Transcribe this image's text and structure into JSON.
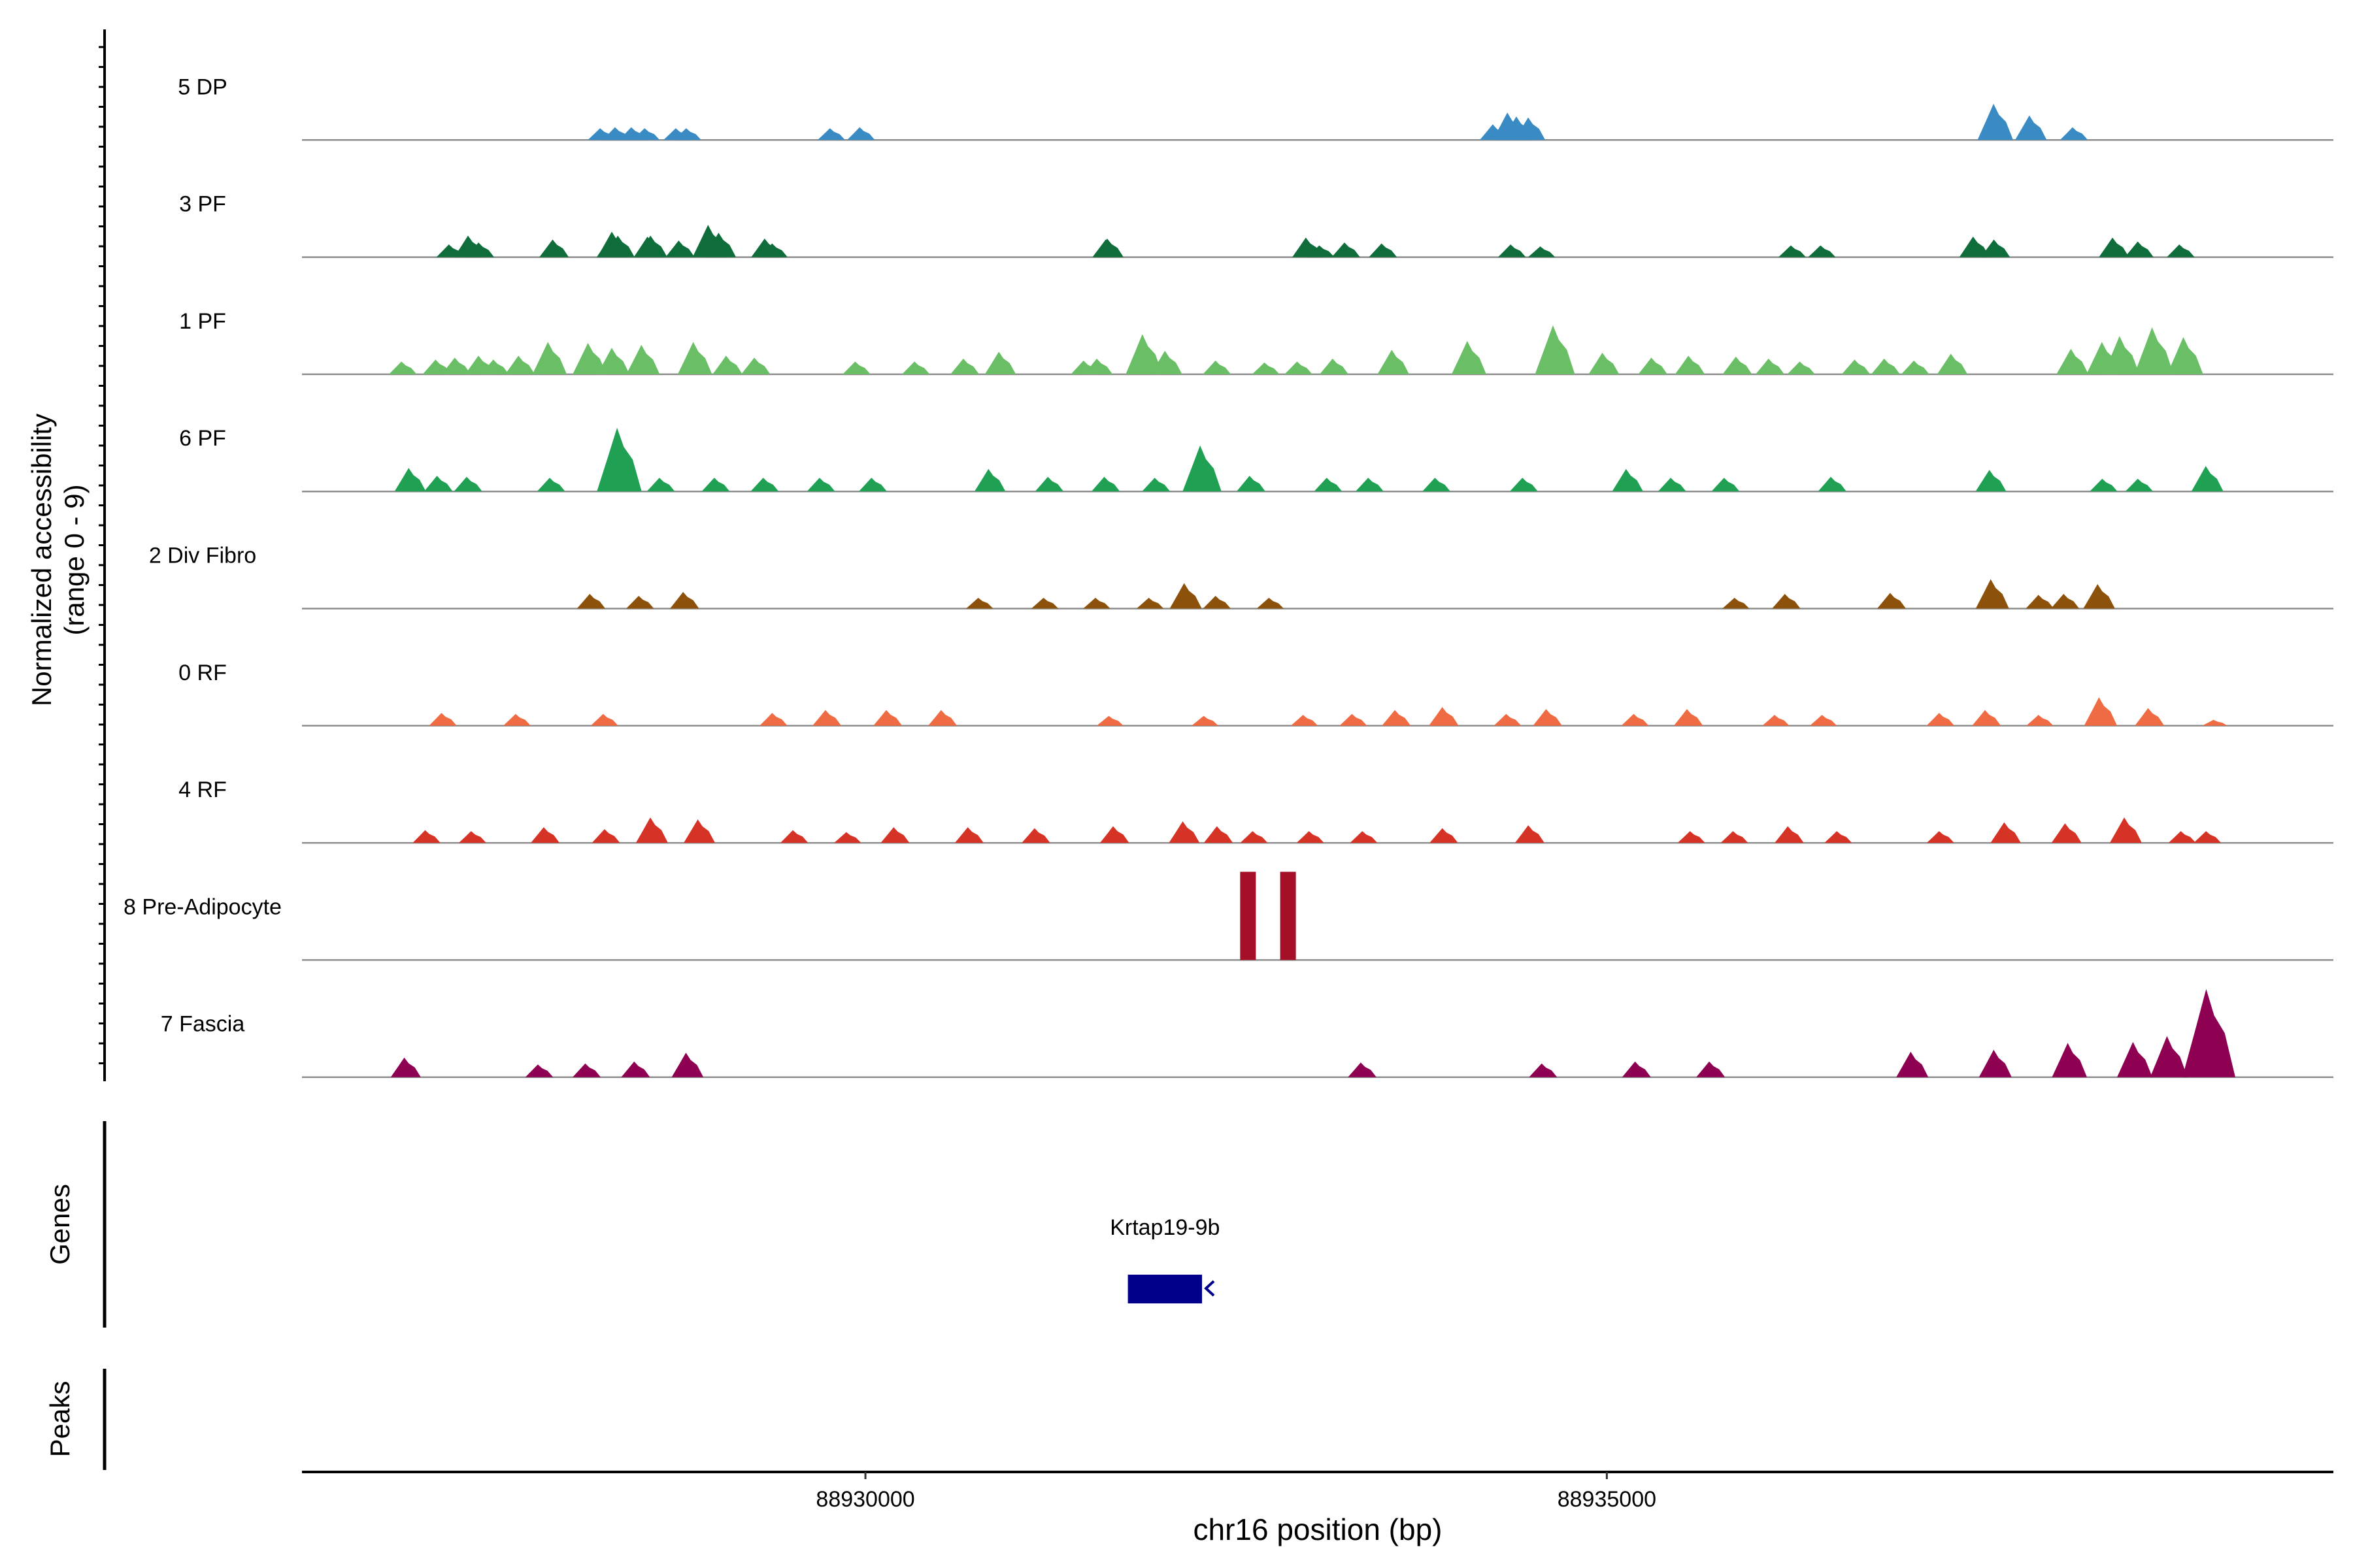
{
  "chart_data": {
    "type": "area",
    "title": "",
    "region": {
      "chromosome": "chr16",
      "start": 88926200,
      "end": 88939900
    },
    "xlabel": "chr16 position (bp)",
    "x_ticks": [
      88930000,
      88935000
    ],
    "x_tick_labels": [
      "88930000",
      "88935000"
    ],
    "ylabel": [
      "Normalized accessibility",
      "(range 0 - 9)"
    ],
    "ylim": [
      0,
      9
    ],
    "panel_labels": {
      "genes": "Genes",
      "peaks": "Peaks"
    },
    "series": [
      {
        "name": "5 DP",
        "color": "#3a8bc4",
        "points": [
          [
            88928220,
            1.2
          ],
          [
            88928320,
            1.3
          ],
          [
            88928430,
            1.3
          ],
          [
            88928520,
            1.2
          ],
          [
            88928730,
            1.2
          ],
          [
            88928800,
            1.2
          ],
          [
            88929770,
            1.2
          ],
          [
            88929970,
            1.3
          ],
          [
            88934240,
            1.6
          ],
          [
            88934340,
            2.8
          ],
          [
            88934400,
            2.4
          ],
          [
            88934480,
            2.3
          ],
          [
            88937620,
            3.7
          ],
          [
            88937860,
            2.5
          ],
          [
            88938150,
            1.3
          ]
        ]
      },
      {
        "name": "3 PF",
        "color": "#0e6d3a",
        "points": [
          [
            88927200,
            1.3
          ],
          [
            88927330,
            2.2
          ],
          [
            88927400,
            1.5
          ],
          [
            88927900,
            1.8
          ],
          [
            88928290,
            2.1
          ],
          [
            88928300,
            2.6
          ],
          [
            88928340,
            2.2
          ],
          [
            88928540,
            2.1
          ],
          [
            88928560,
            2.2
          ],
          [
            88928750,
            1.7
          ],
          [
            88928950,
            3.3
          ],
          [
            88929020,
            2.5
          ],
          [
            88929330,
            1.9
          ],
          [
            88929380,
            1.4
          ],
          [
            88931640,
            1.9
          ],
          [
            88931630,
            1.8
          ],
          [
            88932980,
            2.0
          ],
          [
            88933070,
            1.2
          ],
          [
            88933240,
            1.5
          ],
          [
            88933490,
            1.4
          ],
          [
            88934360,
            1.3
          ],
          [
            88934560,
            1.1
          ],
          [
            88936250,
            1.2
          ],
          [
            88936450,
            1.2
          ],
          [
            88937480,
            2.1
          ],
          [
            88937620,
            1.8
          ],
          [
            88938420,
            2.0
          ],
          [
            88938590,
            1.6
          ],
          [
            88938870,
            1.3
          ]
        ]
      },
      {
        "name": "1 PF",
        "color": "#69be66",
        "points": [
          [
            88926880,
            1.3
          ],
          [
            88927110,
            1.5
          ],
          [
            88927240,
            1.7
          ],
          [
            88927400,
            1.9
          ],
          [
            88927500,
            1.5
          ],
          [
            88927670,
            1.9
          ],
          [
            88927870,
            3.3
          ],
          [
            88928140,
            3.2
          ],
          [
            88928300,
            2.7
          ],
          [
            88928500,
            3.0
          ],
          [
            88928850,
            3.3
          ],
          [
            88929070,
            1.9
          ],
          [
            88929260,
            1.7
          ],
          [
            88929940,
            1.3
          ],
          [
            88930340,
            1.3
          ],
          [
            88930670,
            1.6
          ],
          [
            88930910,
            2.3
          ],
          [
            88931480,
            1.4
          ],
          [
            88931570,
            1.6
          ],
          [
            88931880,
            4.1
          ],
          [
            88932030,
            2.4
          ],
          [
            88932370,
            1.4
          ],
          [
            88932700,
            1.2
          ],
          [
            88932920,
            1.3
          ],
          [
            88933160,
            1.6
          ],
          [
            88933560,
            2.5
          ],
          [
            88934070,
            3.4
          ],
          [
            88934650,
            5.0
          ],
          [
            88934980,
            2.2
          ],
          [
            88935310,
            1.7
          ],
          [
            88935560,
            1.9
          ],
          [
            88935880,
            1.8
          ],
          [
            88936100,
            1.6
          ],
          [
            88936310,
            1.3
          ],
          [
            88936680,
            1.5
          ],
          [
            88936880,
            1.6
          ],
          [
            88937080,
            1.4
          ],
          [
            88937330,
            2.1
          ],
          [
            88938140,
            2.6
          ],
          [
            88938350,
            3.3
          ],
          [
            88938470,
            3.9
          ],
          [
            88938690,
            4.8
          ],
          [
            88938900,
            3.8
          ]
        ]
      },
      {
        "name": "6 PF",
        "color": "#20a053",
        "points": [
          [
            88926930,
            2.4
          ],
          [
            88927120,
            1.6
          ],
          [
            88927320,
            1.5
          ],
          [
            88927880,
            1.4
          ],
          [
            88928340,
            6.5
          ],
          [
            88928620,
            1.4
          ],
          [
            88928990,
            1.4
          ],
          [
            88929320,
            1.4
          ],
          [
            88929700,
            1.4
          ],
          [
            88930050,
            1.4
          ],
          [
            88930840,
            2.3
          ],
          [
            88931240,
            1.5
          ],
          [
            88931620,
            1.5
          ],
          [
            88931960,
            1.4
          ],
          [
            88932270,
            4.7
          ],
          [
            88932600,
            1.6
          ],
          [
            88933120,
            1.4
          ],
          [
            88933400,
            1.4
          ],
          [
            88933850,
            1.4
          ],
          [
            88934440,
            1.4
          ],
          [
            88935140,
            2.3
          ],
          [
            88935440,
            1.4
          ],
          [
            88935800,
            1.4
          ],
          [
            88936520,
            1.5
          ],
          [
            88937590,
            2.2
          ],
          [
            88938350,
            1.3
          ],
          [
            88938590,
            1.3
          ],
          [
            88939050,
            2.6
          ]
        ]
      },
      {
        "name": "2 Div Fibro",
        "color": "#8c510a",
        "points": [
          [
            88928150,
            1.5
          ],
          [
            88928480,
            1.3
          ],
          [
            88928780,
            1.7
          ],
          [
            88930770,
            1.1
          ],
          [
            88931210,
            1.1
          ],
          [
            88931560,
            1.1
          ],
          [
            88931920,
            1.1
          ],
          [
            88932160,
            2.6
          ],
          [
            88932370,
            1.3
          ],
          [
            88932730,
            1.1
          ],
          [
            88935870,
            1.1
          ],
          [
            88936210,
            1.5
          ],
          [
            88936920,
            1.6
          ],
          [
            88937600,
            3.0
          ],
          [
            88937920,
            1.4
          ],
          [
            88938090,
            1.5
          ],
          [
            88938320,
            2.5
          ]
        ]
      },
      {
        "name": "0 RF",
        "color": "#ef6b43",
        "points": [
          [
            88927150,
            1.3
          ],
          [
            88927650,
            1.2
          ],
          [
            88928240,
            1.2
          ],
          [
            88929380,
            1.3
          ],
          [
            88929740,
            1.6
          ],
          [
            88930150,
            1.6
          ],
          [
            88930520,
            1.6
          ],
          [
            88931650,
            1.0
          ],
          [
            88932290,
            1.0
          ],
          [
            88932960,
            1.1
          ],
          [
            88933290,
            1.2
          ],
          [
            88933580,
            1.6
          ],
          [
            88933900,
            1.9
          ],
          [
            88934330,
            1.2
          ],
          [
            88934600,
            1.7
          ],
          [
            88935190,
            1.2
          ],
          [
            88935550,
            1.7
          ],
          [
            88936140,
            1.1
          ],
          [
            88936460,
            1.1
          ],
          [
            88937250,
            1.3
          ],
          [
            88937560,
            1.6
          ],
          [
            88937920,
            1.1
          ],
          [
            88938330,
            2.9
          ],
          [
            88938660,
            1.8
          ],
          [
            88939100,
            0.6
          ]
        ]
      },
      {
        "name": "4 RF",
        "color": "#d63327",
        "points": [
          [
            88927040,
            1.3
          ],
          [
            88927350,
            1.2
          ],
          [
            88927840,
            1.6
          ],
          [
            88928250,
            1.4
          ],
          [
            88928560,
            2.6
          ],
          [
            88928880,
            2.4
          ],
          [
            88929520,
            1.3
          ],
          [
            88929880,
            1.1
          ],
          [
            88930200,
            1.6
          ],
          [
            88930700,
            1.6
          ],
          [
            88931150,
            1.5
          ],
          [
            88931680,
            1.7
          ],
          [
            88932150,
            2.2
          ],
          [
            88932380,
            1.7
          ],
          [
            88932620,
            1.2
          ],
          [
            88933000,
            1.2
          ],
          [
            88933360,
            1.2
          ],
          [
            88933900,
            1.5
          ],
          [
            88934480,
            1.8
          ],
          [
            88935570,
            1.2
          ],
          [
            88935860,
            1.2
          ],
          [
            88936230,
            1.7
          ],
          [
            88936560,
            1.2
          ],
          [
            88937250,
            1.2
          ],
          [
            88937690,
            2.1
          ],
          [
            88938100,
            2.0
          ],
          [
            88938500,
            2.6
          ],
          [
            88938880,
            1.2
          ],
          [
            88939050,
            1.2
          ]
        ]
      },
      {
        "name": "8 Pre-Adipocyte",
        "color": "#a50f28",
        "points": [
          [
            88932580,
            9.0
          ],
          [
            88932850,
            9.0
          ]
        ]
      },
      {
        "name": "7 Fascia",
        "color": "#8e0152",
        "points": [
          [
            88926900,
            2.0
          ],
          [
            88927800,
            1.3
          ],
          [
            88928120,
            1.4
          ],
          [
            88928450,
            1.6
          ],
          [
            88928800,
            2.5
          ],
          [
            88933350,
            1.5
          ],
          [
            88934570,
            1.4
          ],
          [
            88935200,
            1.6
          ],
          [
            88935700,
            1.6
          ],
          [
            88937060,
            2.6
          ],
          [
            88937620,
            2.8
          ],
          [
            88938120,
            3.5
          ],
          [
            88938560,
            3.6
          ],
          [
            88938790,
            4.2
          ],
          [
            88939060,
            9.0
          ]
        ]
      }
    ],
    "genes": [
      {
        "name": "Krtap19-9b",
        "start": 88931770,
        "end": 88932270,
        "strand": "-",
        "color": "#00008b"
      }
    ],
    "peaks": []
  }
}
